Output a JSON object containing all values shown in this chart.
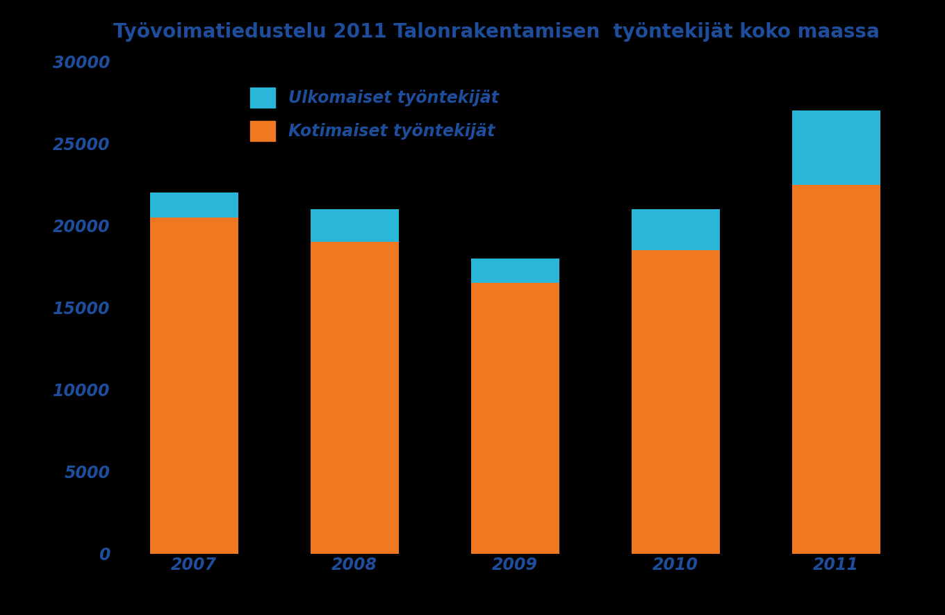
{
  "title": "Työvoimatiedustelu 2011 Talonrakentamisen  työntekijät koko maassa",
  "categories": [
    "2007",
    "2008",
    "2009",
    "2010",
    "2011"
  ],
  "domestic": [
    20500,
    19000,
    16500,
    18500,
    22500
  ],
  "foreign": [
    1500,
    2000,
    1500,
    2500,
    4500
  ],
  "color_domestic": "#f07820",
  "color_foreign": "#29b6d8",
  "legend_foreign": "Ulkomaiset työntekijät",
  "legend_domestic": "Kotimaiset työntekijät",
  "ylim": [
    0,
    30000
  ],
  "yticks": [
    0,
    5000,
    10000,
    15000,
    20000,
    25000,
    30000
  ],
  "ytick_labels": [
    "0",
    "5000",
    "10000",
    "15000",
    "20000",
    "25000",
    "30000"
  ],
  "background_color": "#000000",
  "title_color": "#1e4d9b",
  "tick_color": "#1e4d9b",
  "title_fontsize": 20,
  "legend_fontsize": 17,
  "tick_fontsize": 17,
  "bar_width": 0.55
}
